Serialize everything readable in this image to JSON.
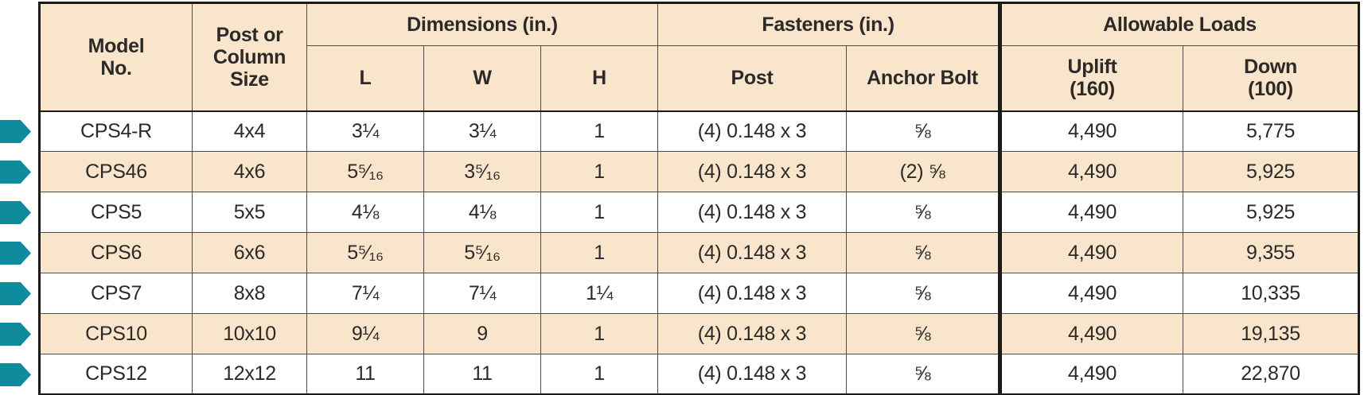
{
  "colors": {
    "accent_teal": "#0E8C9D",
    "header_bg": "#F9E5CC",
    "row_alt_bg": "#F9E5CC",
    "outer_border": "#1C1A19",
    "grid_line": "#4D4A48",
    "text": "#2B2A29"
  },
  "table": {
    "header": {
      "model_no": "Model\nNo.",
      "post_or_column_size": "Post or\nColumn\nSize",
      "dimensions_group": "Dimensions (in.)",
      "l": "L",
      "w": "W",
      "h": "H",
      "fasteners_group": "Fasteners (in.)",
      "post": "Post",
      "anchor_bolt": "Anchor Bolt",
      "allowable_loads_group": "Allowable Loads",
      "uplift": "Uplift\n(160)",
      "down": "Down\n(100)"
    },
    "rows": [
      {
        "model": "CPS4-R",
        "size": "4x4",
        "l": "3¼",
        "w": "3¼",
        "h": "1",
        "post": "(4) 0.148 x 3",
        "anchor": "⅝",
        "uplift": "4,490",
        "down": "5,775"
      },
      {
        "model": "CPS46",
        "size": "4x6",
        "l": "5⁵⁄₁₆",
        "w": "3⁵⁄₁₆",
        "h": "1",
        "post": "(4) 0.148 x 3",
        "anchor": "(2) ⅝",
        "uplift": "4,490",
        "down": "5,925"
      },
      {
        "model": "CPS5",
        "size": "5x5",
        "l": "4⅛",
        "w": "4⅛",
        "h": "1",
        "post": "(4) 0.148 x 3",
        "anchor": "⅝",
        "uplift": "4,490",
        "down": "5,925"
      },
      {
        "model": "CPS6",
        "size": "6x6",
        "l": "5⁵⁄₁₆",
        "w": "5⁵⁄₁₆",
        "h": "1",
        "post": "(4) 0.148 x 3",
        "anchor": "⅝",
        "uplift": "4,490",
        "down": "9,355"
      },
      {
        "model": "CPS7",
        "size": "8x8",
        "l": "7¼",
        "w": "7¼",
        "h": "1¼",
        "post": "(4) 0.148 x 3",
        "anchor": "⅝",
        "uplift": "4,490",
        "down": "10,335"
      },
      {
        "model": "CPS10",
        "size": "10x10",
        "l": "9¼",
        "w": "9",
        "h": "1",
        "post": "(4) 0.148 x 3",
        "anchor": "⅝",
        "uplift": "4,490",
        "down": "19,135"
      },
      {
        "model": "CPS12",
        "size": "12x12",
        "l": "11",
        "w": "11",
        "h": "1",
        "post": "(4) 0.148 x 3",
        "anchor": "⅝",
        "uplift": "4,490",
        "down": "22,870"
      }
    ]
  }
}
